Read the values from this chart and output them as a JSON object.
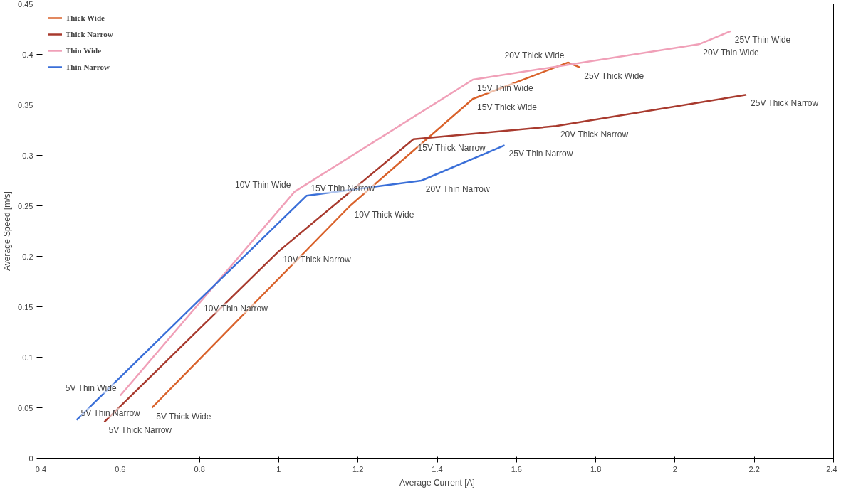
{
  "chart_data": {
    "type": "line",
    "xlabel": "Average Current [A]",
    "ylabel": "Average Speed [m/s]",
    "xlim": [
      0.4,
      2.4
    ],
    "ylim": [
      0,
      0.45
    ],
    "xticks": [
      0.4,
      0.6,
      0.8,
      1,
      1.2,
      1.4,
      1.6,
      1.8,
      2,
      2.2,
      2.4
    ],
    "yticks": [
      0,
      0.05,
      0.1,
      0.15,
      0.2,
      0.25,
      0.3,
      0.35,
      0.4,
      0.45
    ],
    "grid": false,
    "legend": "top left",
    "line_style": "solid",
    "series": [
      {
        "name": "Thick Wide",
        "color": "#d9622b",
        "x": [
          0.68,
          1.18,
          1.49,
          1.73,
          1.76
        ],
        "values": [
          0.05,
          0.25,
          0.356,
          0.392,
          0.387
        ]
      },
      {
        "name": "Thick Narrow",
        "color": "#a83a2e",
        "x": [
          0.56,
          1.0,
          1.34,
          1.7,
          2.18
        ],
        "values": [
          0.036,
          0.205,
          0.316,
          0.329,
          0.36
        ]
      },
      {
        "name": "Thin Wide",
        "color": "#f0a0b8",
        "x": [
          0.6,
          1.04,
          1.49,
          2.06,
          2.14
        ],
        "values": [
          0.062,
          0.264,
          0.375,
          0.41,
          0.423
        ]
      },
      {
        "name": "Thin Narrow",
        "color": "#3a6fd8",
        "x": [
          0.49,
          0.8,
          1.07,
          1.36,
          1.57
        ],
        "values": [
          0.038,
          0.157,
          0.26,
          0.275,
          0.31
        ]
      }
    ],
    "annotations": [
      {
        "text": "5V Thick Wide",
        "x": 0.68,
        "y": 0.05
      },
      {
        "text": "10V Thick Wide",
        "x": 1.18,
        "y": 0.25
      },
      {
        "text": "15V Thick Wide",
        "x": 1.49,
        "y": 0.356
      },
      {
        "text": "20V Thick Wide",
        "x": 1.73,
        "y": 0.392
      },
      {
        "text": "25V Thick Wide",
        "x": 1.76,
        "y": 0.387
      },
      {
        "text": "5V Thick Narrow",
        "x": 0.56,
        "y": 0.036
      },
      {
        "text": "10V Thick Narrow",
        "x": 1.0,
        "y": 0.205
      },
      {
        "text": "15V Thick Narrow",
        "x": 1.34,
        "y": 0.316
      },
      {
        "text": "20V Thick Narrow",
        "x": 1.7,
        "y": 0.329
      },
      {
        "text": "25V Thick Narrow",
        "x": 2.18,
        "y": 0.36
      },
      {
        "text": "5V Thin Wide",
        "x": 0.6,
        "y": 0.062
      },
      {
        "text": "10V Thin Wide",
        "x": 1.04,
        "y": 0.264
      },
      {
        "text": "15V Thin Wide",
        "x": 1.49,
        "y": 0.375
      },
      {
        "text": "20V Thin Wide",
        "x": 2.06,
        "y": 0.41
      },
      {
        "text": "25V Thin Wide",
        "x": 2.14,
        "y": 0.423
      },
      {
        "text": "5V Thin Narrow",
        "x": 0.49,
        "y": 0.038
      },
      {
        "text": "10V Thin Narrow",
        "x": 0.8,
        "y": 0.157
      },
      {
        "text": "15V Thin Narrow",
        "x": 1.07,
        "y": 0.26
      },
      {
        "text": "20V Thin Narrow",
        "x": 1.36,
        "y": 0.275
      },
      {
        "text": "25V Thin Narrow",
        "x": 1.57,
        "y": 0.31
      }
    ]
  }
}
